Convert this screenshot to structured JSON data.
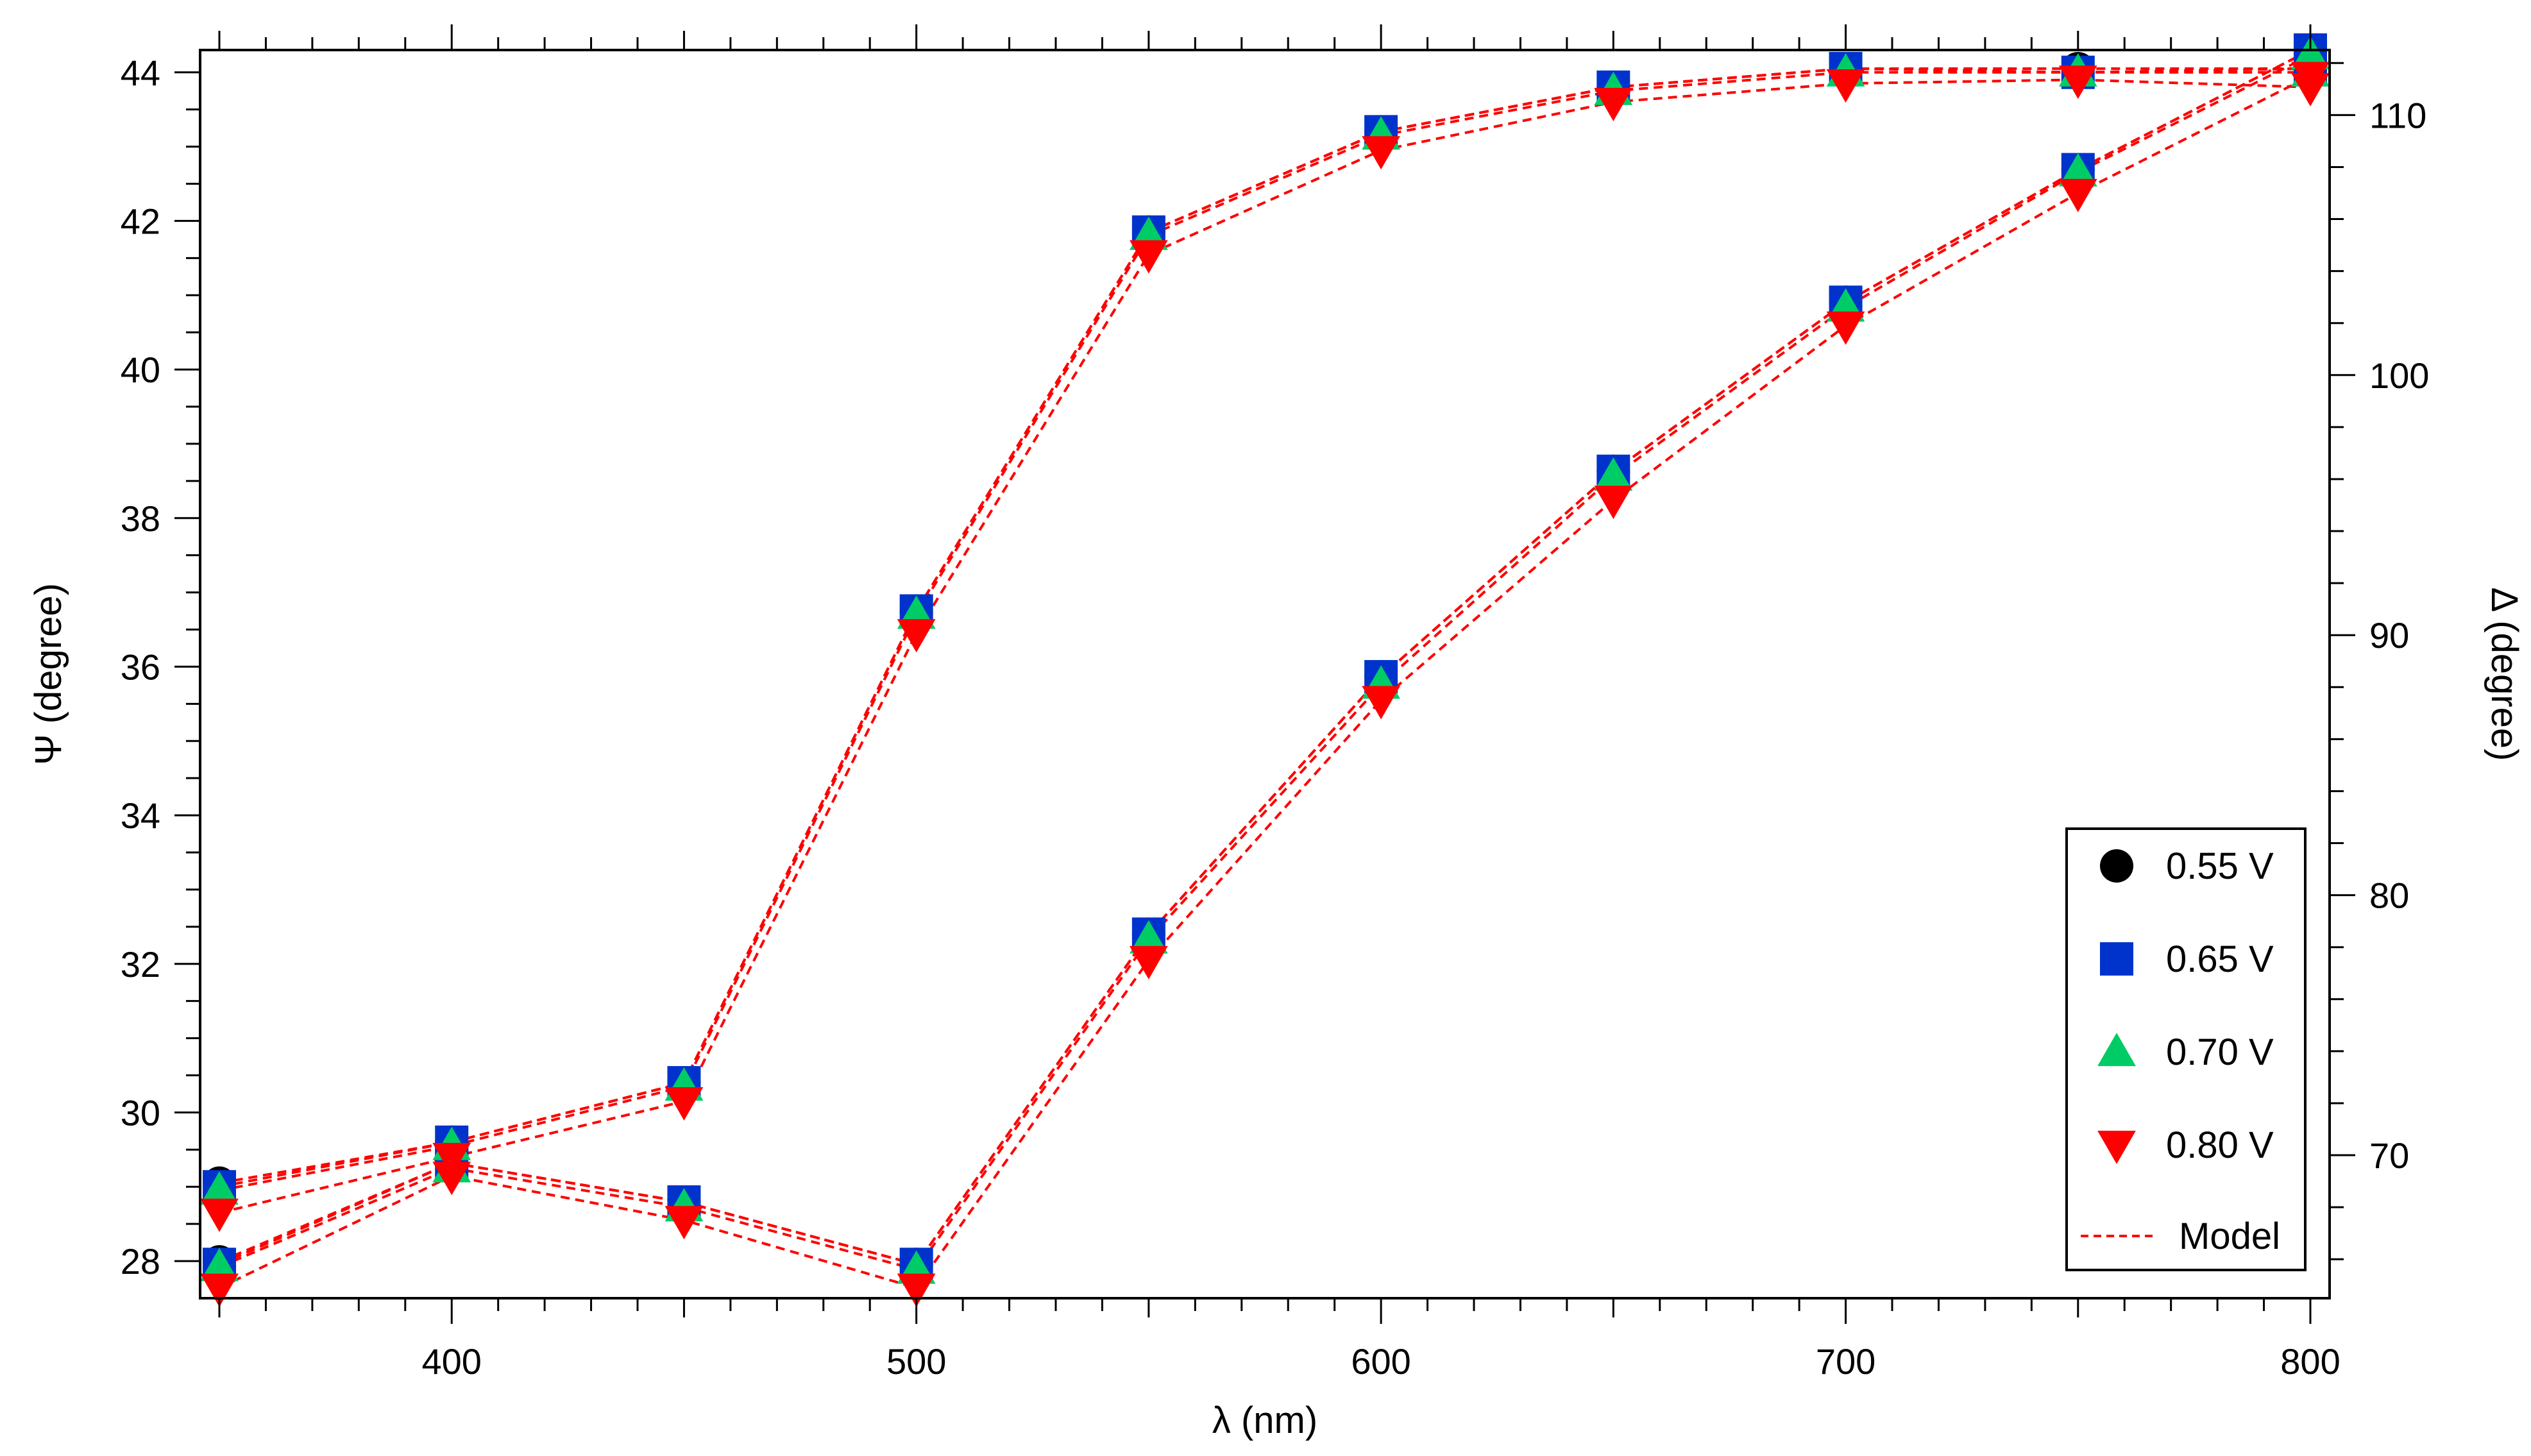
{
  "chart_data": {
    "type": "scatter",
    "xlabel": "λ (nm)",
    "ylabel_left": "Ψ (degree)",
    "ylabel_right": "Δ (degree)",
    "xlim": [
      350,
      800
    ],
    "ylim_left": [
      27.5,
      44.3
    ],
    "ylim_right": [
      64.5,
      112.5
    ],
    "x_ticks": [
      400,
      500,
      600,
      700,
      800
    ],
    "y_left_ticks": [
      28,
      30,
      32,
      34,
      36,
      38,
      40,
      42,
      44
    ],
    "y_right_ticks": [
      70,
      80,
      90,
      100,
      110
    ],
    "grid": false,
    "legend_position": "lower-right",
    "legend_model_label": "Model",
    "model_color": "#ff0000",
    "x": [
      350,
      400,
      450,
      500,
      550,
      600,
      650,
      700,
      750,
      800
    ],
    "series": [
      {
        "name": "0.55 V",
        "marker": "circle",
        "color": "#000000",
        "psi": [
          29.05,
          29.6,
          30.4,
          36.75,
          41.85,
          43.2,
          43.8,
          44.05,
          44.05,
          44.05
        ],
        "delta": [
          65.9,
          69.7,
          68.2,
          65.8,
          78.5,
          88.4,
          96.3,
          102.8,
          107.9,
          112.5
        ]
      },
      {
        "name": "0.65 V",
        "marker": "square",
        "color": "#0033cc",
        "psi": [
          29.0,
          29.6,
          30.4,
          36.75,
          41.85,
          43.2,
          43.8,
          44.05,
          44.0,
          44.05
        ],
        "delta": [
          65.8,
          69.7,
          68.2,
          65.8,
          78.5,
          88.4,
          96.3,
          102.8,
          107.9,
          112.5
        ]
      },
      {
        "name": "0.70 V",
        "marker": "triangle-up",
        "color": "#00cc66",
        "psi": [
          28.95,
          29.55,
          30.35,
          36.7,
          41.8,
          43.15,
          43.75,
          44.0,
          44.0,
          44.0
        ],
        "delta": [
          65.7,
          69.5,
          68.0,
          65.6,
          78.3,
          88.1,
          96.1,
          102.6,
          107.8,
          112.3
        ]
      },
      {
        "name": "0.80 V",
        "marker": "triangle-down",
        "color": "#ff0000",
        "psi": [
          28.65,
          29.4,
          30.15,
          36.45,
          41.55,
          42.95,
          43.6,
          43.85,
          43.9,
          43.8
        ],
        "delta": [
          64.9,
          69.2,
          67.5,
          64.9,
          77.5,
          87.5,
          95.2,
          101.9,
          107.0,
          111.5
        ]
      }
    ]
  }
}
